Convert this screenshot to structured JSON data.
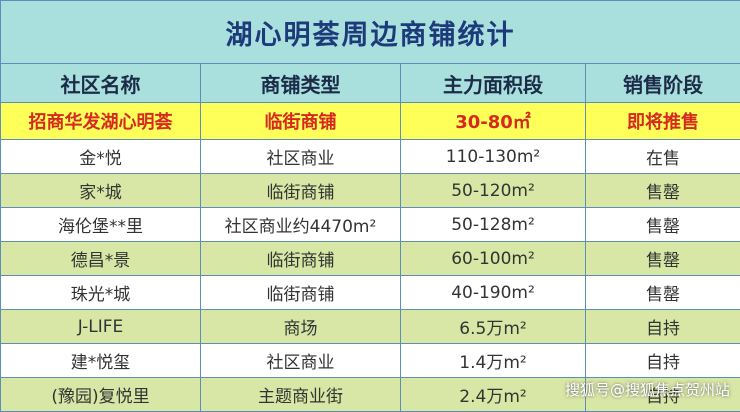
{
  "header": {
    "title": "湖心明荟周边商铺统计"
  },
  "table": {
    "columns": [
      "社区名称",
      "商铺类型",
      "主力面积段",
      "销售阶段"
    ],
    "rows": [
      [
        "招商华发湖心明荟",
        "临街商铺",
        "30-80㎡",
        "即将推售"
      ],
      [
        "金*悦",
        "社区商业",
        "110-130m²",
        "在售"
      ],
      [
        "家*城",
        "临街商铺",
        "50-120m²",
        "售罄"
      ],
      [
        "海伦堡**里",
        "社区商业约4470m²",
        "50-128m²",
        "售罄"
      ],
      [
        "德昌*景",
        "临街商铺",
        "60-100m²",
        "售罄"
      ],
      [
        "珠光*城",
        "临街商铺",
        "40-190m²",
        "售罄"
      ],
      [
        "J-LIFE",
        "商场",
        "6.5万m²",
        "自持"
      ],
      [
        "建*悦玺",
        "社区商业",
        "1.4万m²",
        "自持"
      ],
      [
        "(豫园)复悦里",
        "主题商业街",
        "2.4万m²",
        "自持"
      ]
    ]
  },
  "watermark": "搜狐号@搜狐焦点贺州站"
}
